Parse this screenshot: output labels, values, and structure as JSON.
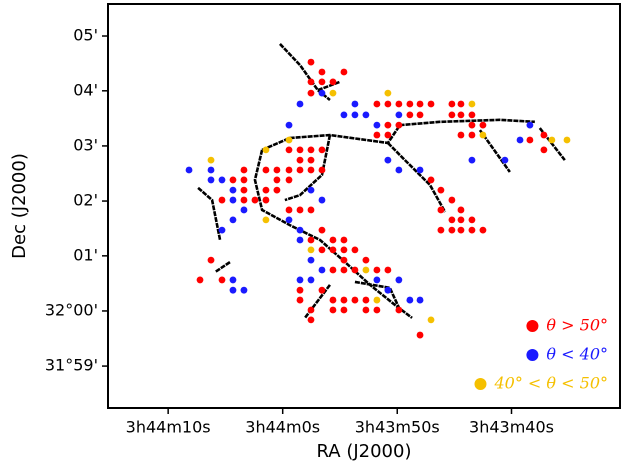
{
  "chart_data": {
    "type": "scatter",
    "x_label": "RA (J2000)",
    "y_label": "Dec (J2000)",
    "xlim": [
      56.0636,
      55.8772
    ],
    "ylim": [
      31.9706,
      32.093
    ],
    "xticks": [
      {
        "value": 56.0417,
        "label": "3h44m10s"
      },
      {
        "value": 56.0,
        "label": "3h44m0s"
      },
      {
        "value": 55.9583,
        "label": "3h43m50s"
      },
      {
        "value": 55.9167,
        "label": "3h43m40s"
      }
    ],
    "yticks": [
      {
        "value": 32.0833,
        "label": "05'"
      },
      {
        "value": 32.0667,
        "label": "04'"
      },
      {
        "value": 32.05,
        "label": "03'"
      },
      {
        "value": 32.0333,
        "label": "02'"
      },
      {
        "value": 32.0167,
        "label": "01'"
      },
      {
        "value": 32.0,
        "label": "32°00'"
      },
      {
        "value": 31.9833,
        "label": "31°59'"
      }
    ],
    "legend": "lower right",
    "series": [
      {
        "name": "θ > 50°",
        "color": "#ff0000",
        "x": [
          55.9897,
          55.9857,
          55.9777,
          55.9897,
          55.9857,
          55.9817,
          55.9897,
          55.9657,
          55.9617,
          55.9577,
          55.9537,
          55.95,
          55.946,
          55.9384,
          55.9351,
          55.9537,
          55.95,
          55.9384,
          55.9351,
          55.9311,
          55.9577,
          55.9617,
          55.9311,
          55.9271,
          55.9657,
          55.9617,
          55.9351,
          55.9311,
          55.9049,
          55.91,
          55.9049,
          55.9977,
          55.9937,
          55.9897,
          55.9857,
          55.9937,
          55.9897,
          56.0141,
          56.0061,
          56.0021,
          55.9977,
          55.9937,
          55.9897,
          55.9857,
          56.0181,
          56.0141,
          56.0021,
          55.9977,
          56.0141,
          56.0061,
          56.0021,
          56.0221,
          56.0141,
          56.0101,
          56.0061,
          55.9977,
          55.9937,
          55.9897,
          55.946,
          55.9424,
          55.9384,
          55.9424,
          55.9351,
          55.9384,
          55.9351,
          55.9311,
          55.9424,
          55.9384,
          55.9351,
          55.9311,
          55.9271,
          55.9857,
          55.9897,
          55.9817,
          55.9777,
          55.9857,
          55.9817,
          55.9777,
          55.9737,
          55.9777,
          55.9697,
          55.9817,
          55.9777,
          55.9737,
          55.9657,
          55.9617,
          56.0261,
          56.0221,
          56.0301,
          55.9937,
          55.9857,
          55.9937,
          55.9817,
          55.9777,
          55.9737,
          55.9697,
          55.9897,
          55.9817,
          55.9777,
          55.9697,
          55.9657,
          55.9577,
          55.9897,
          55.95
        ],
        "y": [
          32.0754,
          32.0724,
          32.0724,
          32.0694,
          32.0694,
          32.0694,
          32.066,
          32.0627,
          32.0627,
          32.0627,
          32.0627,
          32.0627,
          32.0627,
          32.0627,
          32.0627,
          32.0594,
          32.0594,
          32.0594,
          32.0594,
          32.0594,
          32.0563,
          32.0563,
          32.0563,
          32.0563,
          32.0533,
          32.0533,
          32.0533,
          32.0533,
          32.0533,
          32.0518,
          32.0488,
          32.0488,
          32.0488,
          32.0488,
          32.0488,
          32.0457,
          32.0457,
          32.0427,
          32.0427,
          32.0427,
          32.0427,
          32.0427,
          32.0427,
          32.0427,
          32.0397,
          32.0397,
          32.0397,
          32.0397,
          32.0366,
          32.0366,
          32.0366,
          32.0336,
          32.0336,
          32.0336,
          32.0336,
          32.0306,
          32.0306,
          32.0306,
          32.0397,
          32.0366,
          32.0336,
          32.0306,
          32.0306,
          32.0276,
          32.0276,
          32.0276,
          32.0245,
          32.0245,
          32.0245,
          32.0245,
          32.0245,
          32.0245,
          32.0215,
          32.0215,
          32.0215,
          32.0185,
          32.0185,
          32.0185,
          32.0185,
          32.0154,
          32.0154,
          32.0124,
          32.0124,
          32.0124,
          32.0124,
          32.0124,
          32.0154,
          32.0094,
          32.0094,
          32.0063,
          32.0063,
          32.0033,
          32.0033,
          32.0033,
          32.0033,
          32.0033,
          32.0003,
          32.0003,
          32.0003,
          32.0003,
          32.0003,
          32.0003,
          31.9973,
          31.9927
        ]
      },
      {
        "name": "θ < 40°",
        "color": "#1a1aff",
        "x": [
          55.9937,
          55.9737,
          55.9777,
          55.9737,
          55.9697,
          55.9657,
          55.9577,
          55.9136,
          55.91,
          55.9617,
          55.9577,
          55.95,
          55.9311,
          55.9191,
          56.0341,
          56.0261,
          56.0261,
          56.0221,
          56.0181,
          56.0181,
          56.0141,
          56.0181,
          56.0221,
          55.9897,
          55.9857,
          55.9977,
          55.9937,
          55.9937,
          55.9897,
          55.9857,
          55.9937,
          55.9897,
          55.9657,
          55.9577,
          55.9617,
          55.9537,
          55.95,
          56.0181,
          56.0181,
          56.0141,
          55.9977,
          55.9857
        ],
        "y": [
          32.0627,
          32.0627,
          32.0594,
          32.0594,
          32.0594,
          32.0563,
          32.0594,
          32.0518,
          32.0563,
          32.0457,
          32.0427,
          32.0427,
          32.0457,
          32.0457,
          32.0427,
          32.0427,
          32.0397,
          32.0397,
          32.0366,
          32.0336,
          32.0306,
          32.0276,
          32.0245,
          32.0366,
          32.0336,
          32.0276,
          32.0245,
          32.0215,
          32.0154,
          32.0124,
          32.0094,
          32.0094,
          32.0094,
          32.0094,
          32.0063,
          32.0033,
          32.0033,
          32.0094,
          32.0063,
          32.0063,
          32.0563,
          32.066
        ]
      },
      {
        "name": "40° < θ < 50°",
        "color": "#f5c000",
        "x": [
          55.9817,
          55.9617,
          56.0261,
          56.0061,
          55.9977,
          56.0061,
          55.9897,
          55.9697,
          55.9657,
          55.946,
          55.9311,
          55.9271,
          55.902,
          55.8965
        ],
        "y": [
          32.066,
          32.066,
          32.0457,
          32.0488,
          32.0518,
          32.0276,
          32.0185,
          32.0124,
          32.0033,
          31.9973,
          32.0627,
          32.0533,
          32.0518,
          32.0518
        ]
      }
    ],
    "filaments": [
      {
        "x": [
          56.001,
          55.9937,
          55.9872,
          55.9828
        ],
        "y": [
          32.0809,
          32.0745,
          32.0669,
          32.0639
        ]
      },
      {
        "x": [
          55.9872,
          55.9792
        ],
        "y": [
          32.0669,
          32.0694
        ]
      },
      {
        "x": [
          56.0075,
          55.9974,
          55.9828,
          55.9617,
          55.9573,
          55.9428,
          55.9209,
          55.9082
        ],
        "y": [
          32.0488,
          32.0524,
          32.0533,
          32.0509,
          32.0563,
          32.0573,
          32.0579,
          32.0573
        ]
      },
      {
        "x": [
          56.0075,
          56.0101,
          56.0075,
          55.9974,
          55.9864,
          55.9773,
          55.9682,
          55.9591,
          55.9529
        ],
        "y": [
          32.0488,
          32.0397,
          32.0306,
          32.026,
          32.0215,
          32.0148,
          32.0079,
          32.0018,
          31.9979
        ]
      },
      {
        "x": [
          56.0308,
          56.0257,
          56.0228
        ],
        "y": [
          32.0373,
          32.0336,
          32.0215
        ]
      },
      {
        "x": [
          56.0192,
          56.0246
        ],
        "y": [
          32.0148,
          32.0118
        ]
      },
      {
        "x": [
          55.9828,
          55.9857,
          55.9937,
          55.9992
        ],
        "y": [
          32.0533,
          32.0412,
          32.0351,
          32.0336
        ]
      },
      {
        "x": [
          55.9617,
          55.9555,
          55.9464,
          55.9409
        ],
        "y": [
          32.0509,
          32.0457,
          32.0382,
          32.03
        ]
      },
      {
        "x": [
          55.9282,
          55.9173
        ],
        "y": [
          32.0548,
          32.0421
        ]
      },
      {
        "x": [
          55.9064,
          55.8973
        ],
        "y": [
          32.0554,
          32.0457
        ]
      },
      {
        "x": [
          55.9828,
          55.9919
        ],
        "y": [
          32.0079,
          31.9979
        ]
      },
      {
        "x": [
          55.9737,
          55.961,
          55.9573
        ],
        "y": [
          32.0088,
          32.007,
          32.0003
        ]
      }
    ]
  }
}
